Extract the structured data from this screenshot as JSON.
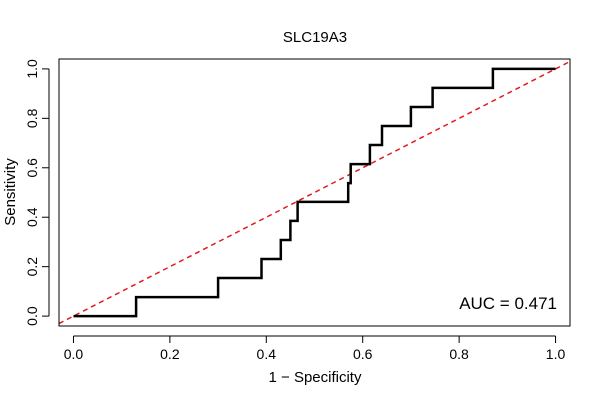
{
  "chart_data": {
    "type": "line",
    "title": "SLC19A3",
    "xlabel": "1 − Specificity",
    "ylabel": "Sensitivity",
    "xlim": [
      -0.03,
      1.03
    ],
    "ylim": [
      -0.04,
      1.04
    ],
    "x_ticks": [
      "0.0",
      "0.2",
      "0.4",
      "0.6",
      "0.8",
      "1.0"
    ],
    "y_ticks": [
      "0.0",
      "0.2",
      "0.4",
      "0.6",
      "0.8",
      "1.0"
    ],
    "grid": false,
    "annotation": "AUC = 0.471",
    "colors": {
      "roc": "#000000",
      "reference": "#e31a1c"
    },
    "series": [
      {
        "line": "step",
        "x": [
          0.0,
          0.13,
          0.13,
          0.3,
          0.3,
          0.39,
          0.39,
          0.43,
          0.43,
          0.45,
          0.45,
          0.465,
          0.465,
          0.57,
          0.57,
          0.575,
          0.575,
          0.615,
          0.615,
          0.64,
          0.64,
          0.7,
          0.7,
          0.745,
          0.745,
          0.87,
          0.87,
          1.0
        ],
        "y": [
          0.0,
          0.0,
          0.077,
          0.077,
          0.154,
          0.154,
          0.231,
          0.231,
          0.308,
          0.308,
          0.385,
          0.385,
          0.462,
          0.462,
          0.538,
          0.538,
          0.615,
          0.615,
          0.692,
          0.692,
          0.769,
          0.769,
          0.846,
          0.846,
          0.923,
          0.923,
          1.0,
          1.0
        ]
      },
      {
        "line": "reference-dashed",
        "x": [
          0.0,
          1.0
        ],
        "y": [
          0.0,
          1.0
        ]
      }
    ]
  }
}
